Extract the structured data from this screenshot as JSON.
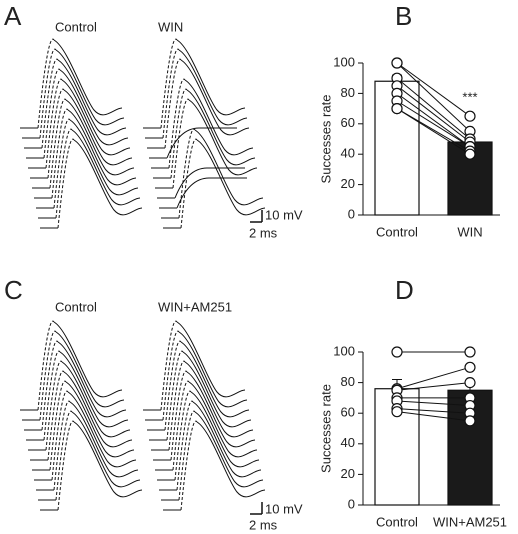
{
  "panels": [
    {
      "letter": "A",
      "conditions": [
        "Control",
        "WIN"
      ],
      "scale_y": "10 mV",
      "scale_x": "2 ms"
    },
    {
      "letter": "B"
    },
    {
      "letter": "C",
      "conditions": [
        "Control",
        "WIN+AM251"
      ],
      "scale_y": "10 mV",
      "scale_x": "2 ms"
    },
    {
      "letter": "D"
    }
  ],
  "chart_data": [
    {
      "type": "bar",
      "ylabel": "Successes rate",
      "categories": [
        "Control",
        "WIN"
      ],
      "values": [
        88,
        48
      ],
      "errors": [
        4,
        3
      ],
      "colors": [
        "#ffffff",
        "#1a1a1a"
      ],
      "points": [
        [
          100,
          100,
          90,
          85,
          80,
          75,
          70,
          70
        ],
        [
          65,
          55,
          50,
          48,
          45,
          45,
          42,
          40
        ]
      ],
      "annotation": "***",
      "ylim": [
        0,
        100
      ],
      "yticks": [
        0,
        20,
        40,
        60,
        80,
        100
      ]
    },
    {
      "type": "bar",
      "ylabel": "Successes rate",
      "categories": [
        "Control",
        "WIN+AM251"
      ],
      "values": [
        76,
        75
      ],
      "errors": [
        6,
        5
      ],
      "colors": [
        "#ffffff",
        "#1a1a1a"
      ],
      "points": [
        [
          100,
          76,
          75,
          70,
          68,
          63,
          61
        ],
        [
          100,
          90,
          80,
          70,
          65,
          60,
          55
        ]
      ],
      "ylim": [
        0,
        100
      ],
      "yticks": [
        0,
        20,
        40,
        60,
        80,
        100
      ]
    }
  ]
}
